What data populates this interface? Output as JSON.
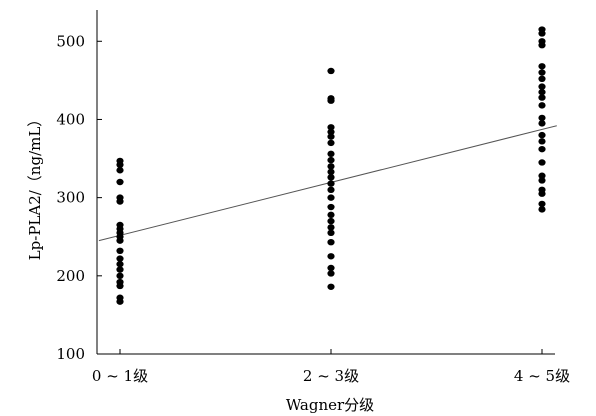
{
  "chart_data": {
    "type": "scatter",
    "title": "",
    "xlabel": "Wagner分级",
    "ylabel": "Lp-PLA2/（ng/mL）",
    "categories": [
      "0 ~ 1级",
      "2 ~ 3级",
      "4 ~ 5级"
    ],
    "ylim": [
      100,
      540
    ],
    "yticks": [
      100,
      200,
      300,
      400,
      500
    ],
    "grid": false,
    "legend": "none",
    "point_color": "#000000",
    "line_color": "#555555",
    "series": [
      {
        "values": [
          [
            0,
            347
          ],
          [
            0,
            342
          ],
          [
            0,
            335
          ],
          [
            0,
            320
          ],
          [
            0,
            300
          ],
          [
            0,
            295
          ],
          [
            0,
            265
          ],
          [
            0,
            260
          ],
          [
            0,
            255
          ],
          [
            0,
            250
          ],
          [
            0,
            245
          ],
          [
            0,
            232
          ],
          [
            0,
            222
          ],
          [
            0,
            215
          ],
          [
            0,
            208
          ],
          [
            0,
            200
          ],
          [
            0,
            192
          ],
          [
            0,
            187
          ],
          [
            0,
            172
          ],
          [
            0,
            167
          ],
          [
            1,
            462
          ],
          [
            1,
            427
          ],
          [
            1,
            424
          ],
          [
            1,
            390
          ],
          [
            1,
            384
          ],
          [
            1,
            378
          ],
          [
            1,
            370
          ],
          [
            1,
            356
          ],
          [
            1,
            348
          ],
          [
            1,
            340
          ],
          [
            1,
            333
          ],
          [
            1,
            326
          ],
          [
            1,
            318
          ],
          [
            1,
            310
          ],
          [
            1,
            300
          ],
          [
            1,
            288
          ],
          [
            1,
            278
          ],
          [
            1,
            270
          ],
          [
            1,
            262
          ],
          [
            1,
            255
          ],
          [
            1,
            243
          ],
          [
            1,
            225
          ],
          [
            1,
            210
          ],
          [
            1,
            203
          ],
          [
            1,
            186
          ],
          [
            2,
            515
          ],
          [
            2,
            510
          ],
          [
            2,
            500
          ],
          [
            2,
            495
          ],
          [
            2,
            468
          ],
          [
            2,
            460
          ],
          [
            2,
            452
          ],
          [
            2,
            442
          ],
          [
            2,
            435
          ],
          [
            2,
            428
          ],
          [
            2,
            418
          ],
          [
            2,
            402
          ],
          [
            2,
            395
          ],
          [
            2,
            380
          ],
          [
            2,
            372
          ],
          [
            2,
            362
          ],
          [
            2,
            345
          ],
          [
            2,
            328
          ],
          [
            2,
            322
          ],
          [
            2,
            310
          ],
          [
            2,
            305
          ],
          [
            2,
            292
          ],
          [
            2,
            285
          ]
        ]
      }
    ],
    "trendline": {
      "x": [
        -0.1,
        2.07
      ],
      "y": [
        245,
        392
      ]
    }
  }
}
